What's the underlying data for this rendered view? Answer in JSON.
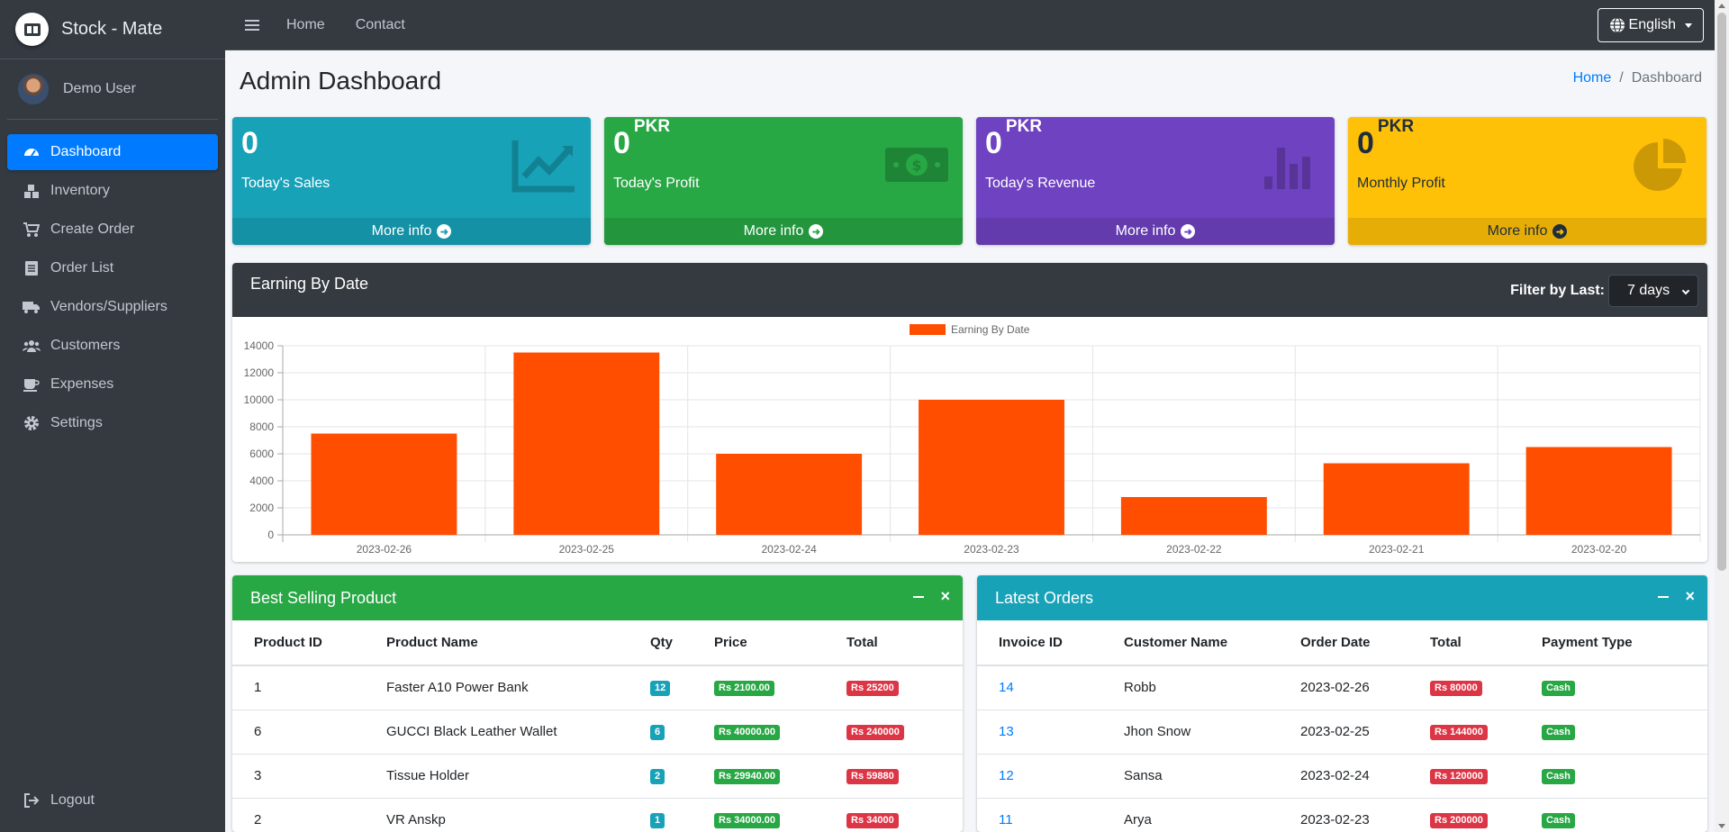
{
  "brand": {
    "name": "Stock - Mate"
  },
  "user": {
    "name": "Demo User"
  },
  "sidebar": {
    "items": [
      {
        "label": "Dashboard",
        "icon": "speedometer-icon",
        "active": true
      },
      {
        "label": "Inventory",
        "icon": "boxes-icon"
      },
      {
        "label": "Create Order",
        "icon": "cart-icon"
      },
      {
        "label": "Order List",
        "icon": "list-icon"
      },
      {
        "label": "Vendors/Suppliers",
        "icon": "truck-icon"
      },
      {
        "label": "Customers",
        "icon": "users-icon"
      },
      {
        "label": "Expenses",
        "icon": "coffee-icon"
      },
      {
        "label": "Settings",
        "icon": "gear-icon"
      }
    ],
    "logout": "Logout"
  },
  "topnav": {
    "home": "Home",
    "contact": "Contact",
    "language": "English"
  },
  "page": {
    "title": "Admin Dashboard",
    "breadcrumb_home": "Home",
    "breadcrumb_sep": "/",
    "breadcrumb_current": "Dashboard"
  },
  "boxes": [
    {
      "value": "0",
      "unit": "",
      "label": "Today's Sales",
      "footer": "More info",
      "color": "#17a2b8",
      "icon": "chart-line-icon"
    },
    {
      "value": "0",
      "unit": "PKR",
      "label": "Today's Profit",
      "footer": "More info",
      "color": "#28a745",
      "icon": "money-bill-icon"
    },
    {
      "value": "0",
      "unit": "PKR",
      "label": "Today's Revenue",
      "footer": "More info",
      "color": "#6f42c1",
      "icon": "bar-chart-icon"
    },
    {
      "value": "0",
      "unit": "PKR",
      "label": "Monthly Profit",
      "footer": "More info",
      "color": "#ffc107",
      "icon": "pie-chart-icon"
    }
  ],
  "earning": {
    "title": "Earning By Date",
    "filter_label": "Filter by Last:",
    "filter_value": "7 days"
  },
  "chart_data": {
    "type": "bar",
    "categories": [
      "2023-02-26",
      "2023-02-25",
      "2023-02-24",
      "2023-02-23",
      "2023-02-22",
      "2023-02-21",
      "2023-02-20"
    ],
    "series": [
      {
        "name": "Earning By Date",
        "values": [
          7500,
          13500,
          6000,
          10000,
          2800,
          5300,
          6500
        ],
        "color": "#ff4e00"
      }
    ],
    "ylim": [
      0,
      14000
    ],
    "yticks": [
      0,
      2000,
      4000,
      6000,
      8000,
      10000,
      12000,
      14000
    ],
    "legend": "top-center",
    "grid": true
  },
  "best_selling": {
    "title": "Best Selling Product",
    "columns": [
      "Product ID",
      "Product Name",
      "Qty",
      "Price",
      "Total"
    ],
    "rows": [
      {
        "id": "1",
        "name": "Faster A10 Power Bank",
        "qty": "12",
        "price": "Rs 2100.00",
        "total": "Rs 25200"
      },
      {
        "id": "6",
        "name": "GUCCI Black Leather Wallet",
        "qty": "6",
        "price": "Rs 40000.00",
        "total": "Rs 240000"
      },
      {
        "id": "3",
        "name": "Tissue Holder",
        "qty": "2",
        "price": "Rs 29940.00",
        "total": "Rs 59880"
      },
      {
        "id": "2",
        "name": "VR Anskp",
        "qty": "1",
        "price": "Rs 34000.00",
        "total": "Rs 34000"
      }
    ]
  },
  "latest_orders": {
    "title": "Latest Orders",
    "columns": [
      "Invoice ID",
      "Customer Name",
      "Order Date",
      "Total",
      "Payment Type"
    ],
    "rows": [
      {
        "id": "14",
        "customer": "Robb",
        "date": "2023-02-26",
        "total": "Rs 80000",
        "payment": "Cash"
      },
      {
        "id": "13",
        "customer": "Jhon Snow",
        "date": "2023-02-25",
        "total": "Rs 144000",
        "payment": "Cash"
      },
      {
        "id": "12",
        "customer": "Sansa",
        "date": "2023-02-24",
        "total": "Rs 120000",
        "payment": "Cash"
      },
      {
        "id": "11",
        "customer": "Arya",
        "date": "2023-02-23",
        "total": "Rs 200000",
        "payment": "Cash"
      }
    ]
  }
}
